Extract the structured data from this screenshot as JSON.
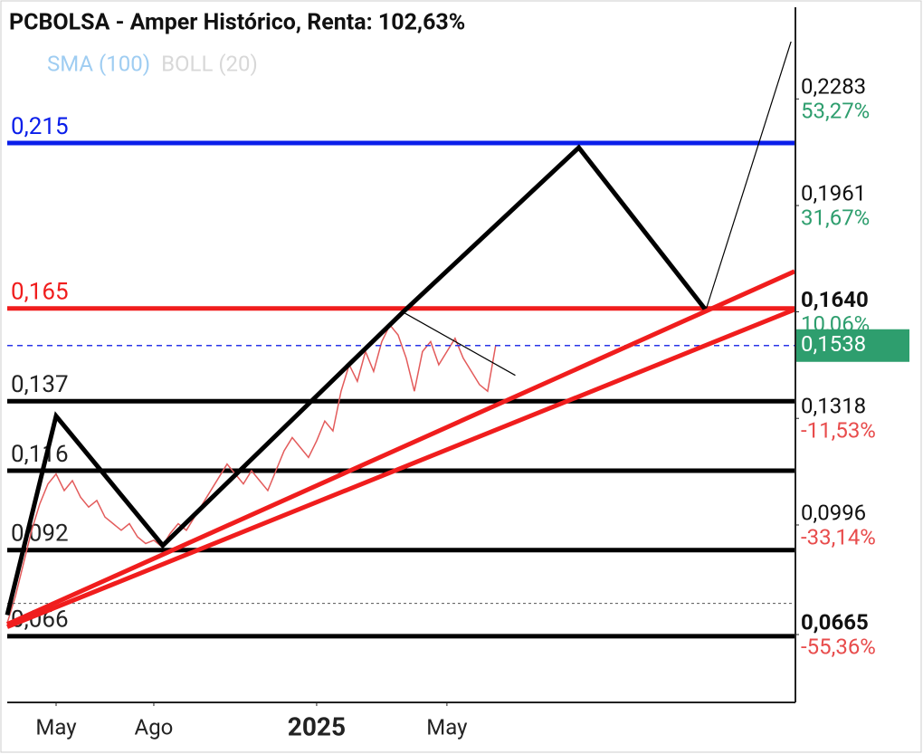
{
  "chart_data": {
    "type": "line",
    "title": "PCBOLSA - Amper Histórico, Renta: 102,63%",
    "legend": [
      {
        "name": "SMA (100)",
        "color": "#9fcdf2"
      },
      {
        "name": "BOLL (20)",
        "color": "#d8d8d8"
      }
    ],
    "series": [
      {
        "name": "PCBOLSA",
        "color": "#e35b5b",
        "values": [
          0.07,
          0.078,
          0.088,
          0.098,
          0.106,
          0.112,
          0.115,
          0.11,
          0.113,
          0.108,
          0.105,
          0.107,
          0.102,
          0.1,
          0.098,
          0.1,
          0.096,
          0.094,
          0.095,
          0.093,
          0.097,
          0.1,
          0.098,
          0.102,
          0.106,
          0.11,
          0.114,
          0.118,
          0.115,
          0.112,
          0.116,
          0.113,
          0.11,
          0.116,
          0.122,
          0.126,
          0.123,
          0.12,
          0.125,
          0.131,
          0.128,
          0.14,
          0.148,
          0.143,
          0.152,
          0.146,
          0.155,
          0.16,
          0.157,
          0.15,
          0.14,
          0.152,
          0.155,
          0.148,
          0.152,
          0.156,
          0.15,
          0.146,
          0.142,
          0.14,
          0.154
        ]
      }
    ],
    "xlim": [
      0,
      96.8
    ],
    "xticks": [
      {
        "value": 6,
        "label": "May"
      },
      {
        "value": 18,
        "label": "Ago"
      },
      {
        "value": 38,
        "label": "2025",
        "bold": true
      },
      {
        "value": 54,
        "label": "May"
      }
    ],
    "ylim": [
      0.046,
      0.256
    ],
    "yticks": [
      {
        "value": 0.2283,
        "label": "0,2283",
        "change": "53,27%"
      },
      {
        "value": 0.1961,
        "label": "0,1961",
        "change": "31,67%"
      },
      {
        "value": 0.164,
        "label": "0,1640",
        "change": "10,06%",
        "bold": true
      },
      {
        "value": 0.1318,
        "label": "0,1318",
        "change": "-11,53%"
      },
      {
        "value": 0.0996,
        "label": "0,0996",
        "change": "-33,14%"
      },
      {
        "value": 0.0665,
        "label": "0,0665",
        "change": "-55,36%",
        "bold": true
      }
    ],
    "current": {
      "value": 0.1538,
      "label": "0,1538",
      "color": "#2e9e6e"
    },
    "dotted_level": 0.0759,
    "levels": [
      {
        "value": 0.215,
        "label": "0,215",
        "color": "#0a1eea"
      },
      {
        "value": 0.165,
        "label": "0,165",
        "color": "#f01d1d"
      },
      {
        "value": 0.137,
        "label": "0,137",
        "color": "#000000"
      },
      {
        "value": 0.116,
        "label": "0,116",
        "color": "#000000"
      },
      {
        "value": 0.092,
        "label": "0,092",
        "color": "#000000"
      },
      {
        "value": 0.066,
        "label": "0,066",
        "color": "#000000"
      }
    ],
    "drawings": [
      {
        "color": "#000000",
        "width": 5,
        "x": [
          0,
          6,
          19.1,
          48.6,
          70.2,
          85.8
        ],
        "y": [
          0.0724,
          0.1325,
          0.0934,
          0.1639,
          0.2136,
          0.1645
        ]
      },
      {
        "color": "#000000",
        "width": 1.2,
        "x": [
          85.8,
          96.3
        ],
        "y": [
          0.1645,
          0.2459
        ]
      },
      {
        "color": "#000000",
        "width": 1.2,
        "x": [
          48.6,
          62.4
        ],
        "y": [
          0.1639,
          0.1448
        ]
      },
      {
        "color": "#f01d1d",
        "width": 5,
        "x": [
          0,
          96.7
        ],
        "y": [
          0.0696,
          0.1762
        ]
      },
      {
        "color": "#f01d1d",
        "width": 5,
        "x": [
          0,
          96.7
        ],
        "y": [
          0.0688,
          0.1647
        ]
      }
    ]
  }
}
